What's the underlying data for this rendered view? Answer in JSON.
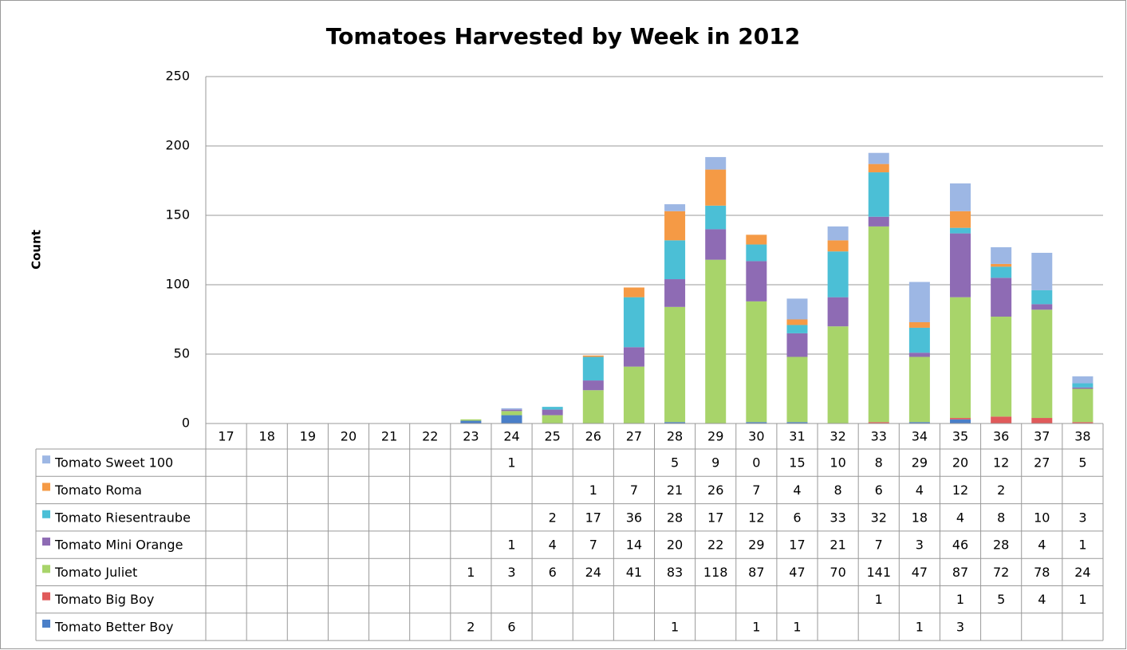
{
  "chart_data": {
    "type": "stacked_bar",
    "title": "Tomatoes Harvested by Week in 2012",
    "y_label": "Count",
    "categories": [
      "17",
      "18",
      "19",
      "20",
      "21",
      "22",
      "23",
      "24",
      "25",
      "26",
      "27",
      "28",
      "29",
      "30",
      "31",
      "32",
      "33",
      "34",
      "35",
      "36",
      "37",
      "38"
    ],
    "series": [
      {
        "name": "Tomato Better Boy",
        "color": "#4a7fc8",
        "values": [
          null,
          null,
          null,
          null,
          null,
          null,
          2,
          6,
          null,
          null,
          null,
          1,
          null,
          1,
          1,
          null,
          null,
          1,
          3,
          null,
          null,
          null
        ]
      },
      {
        "name": "Tomato Big Boy",
        "color": "#e05a5a",
        "values": [
          null,
          null,
          null,
          null,
          null,
          null,
          null,
          null,
          null,
          null,
          null,
          null,
          null,
          null,
          null,
          null,
          1,
          null,
          1,
          5,
          4,
          1
        ]
      },
      {
        "name": "Tomato Juliet",
        "color": "#a8d46a",
        "values": [
          null,
          null,
          null,
          null,
          null,
          null,
          1,
          3,
          6,
          24,
          41,
          83,
          118,
          87,
          47,
          70,
          141,
          47,
          87,
          72,
          78,
          24
        ]
      },
      {
        "name": "Tomato Mini Orange",
        "color": "#8e6bb4",
        "values": [
          null,
          null,
          null,
          null,
          null,
          null,
          null,
          1,
          4,
          7,
          14,
          20,
          22,
          29,
          17,
          21,
          7,
          3,
          46,
          28,
          4,
          1
        ]
      },
      {
        "name": "Tomato Riesentraube",
        "color": "#4bbfd6",
        "values": [
          null,
          null,
          null,
          null,
          null,
          null,
          null,
          null,
          2,
          17,
          36,
          28,
          17,
          12,
          6,
          33,
          32,
          18,
          4,
          8,
          10,
          3
        ]
      },
      {
        "name": "Tomato Roma",
        "color": "#f59a45",
        "values": [
          null,
          null,
          null,
          null,
          null,
          null,
          null,
          null,
          null,
          1,
          7,
          21,
          26,
          7,
          4,
          8,
          6,
          4,
          12,
          2,
          null,
          null
        ]
      },
      {
        "name": "Tomato Sweet 100",
        "color": "#9db7e4",
        "values": [
          null,
          null,
          null,
          null,
          null,
          null,
          null,
          1,
          null,
          null,
          null,
          5,
          9,
          0,
          15,
          10,
          8,
          29,
          20,
          12,
          27,
          5
        ]
      }
    ],
    "ylim": [
      0,
      250
    ],
    "yticks": [
      0,
      50,
      100,
      150,
      200,
      250
    ],
    "grid": true
  }
}
